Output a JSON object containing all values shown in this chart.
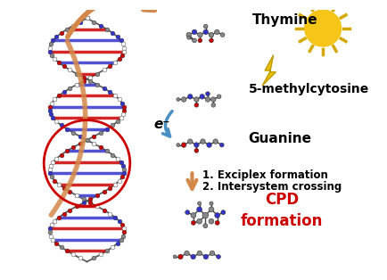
{
  "background_color": "#ffffff",
  "labels": {
    "thymine": "Thymine",
    "methylcytosine": "5-methylcytosine",
    "guanine": "Guanine",
    "step1": "1. Exciplex formation",
    "step2": "2. Intersystem crossing",
    "cpd": "CPD\nformation",
    "electron": "e⁻"
  },
  "label_colors": {
    "thymine": "#000000",
    "methylcytosine": "#000000",
    "guanine": "#000000",
    "steps": "#000000",
    "cpd": "#cc0000",
    "electron": "#000000"
  },
  "sun_color": "#f5c518",
  "sun_ray_color": "#d4a800",
  "lightning_color": "#e8c000",
  "arrow_orange_color": "#d4894a",
  "arrow_blue_color": "#4a90c4",
  "circle_color": "#cc0000"
}
